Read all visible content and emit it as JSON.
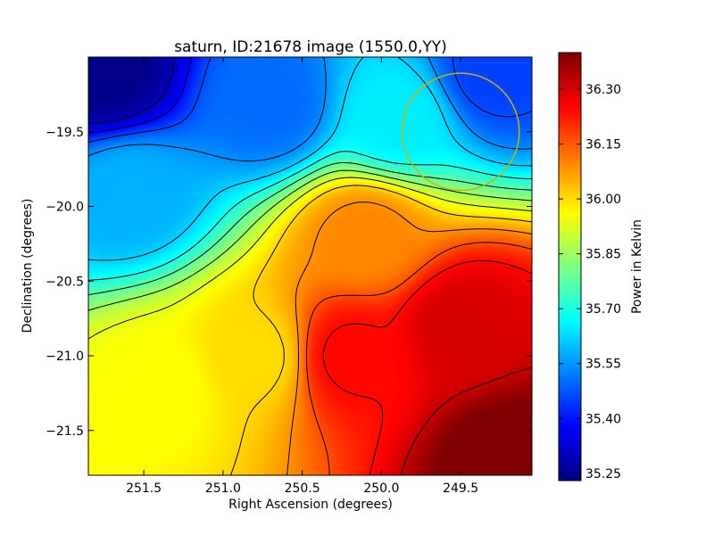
{
  "chart_data": {
    "type": "heatmap",
    "title": "saturn, ID:21678 image (1550.0,YY)",
    "xlabel": "Right Ascension (degrees)",
    "ylabel": "Declination (degrees)",
    "x_reversed": true,
    "xlim": [
      251.85,
      249.05
    ],
    "ylim": [
      -21.8,
      -19.0
    ],
    "x_ticks": [
      251.5,
      251.0,
      250.5,
      250.0,
      249.5
    ],
    "x_tick_labels": [
      "251.5",
      "251.0",
      "250.5",
      "250.0",
      "249.5"
    ],
    "y_ticks": [
      -19.5,
      -20.0,
      -20.5,
      -21.0,
      -21.5
    ],
    "y_tick_labels": [
      "−19.5",
      "−20.0",
      "−20.5",
      "−21.0",
      "−21.5"
    ],
    "colormap": "jet",
    "colorbar": {
      "label": "Power in Kelvin",
      "range": [
        35.23,
        36.4
      ],
      "ticks": [
        35.25,
        35.4,
        35.55,
        35.7,
        35.85,
        36.0,
        36.15,
        36.3
      ],
      "tick_labels": [
        "35.25",
        "35.40",
        "35.55",
        "35.70",
        "35.85",
        "36.00",
        "36.15",
        "36.30"
      ]
    },
    "field_samples": [
      {
        "ra": 251.75,
        "dec": -19.1,
        "value": 35.24
      },
      {
        "ra": 250.7,
        "dec": -19.3,
        "value": 35.5
      },
      {
        "ra": 249.9,
        "dec": -19.4,
        "value": 35.65
      },
      {
        "ra": 249.3,
        "dec": -19.1,
        "value": 35.45
      },
      {
        "ra": 251.6,
        "dec": -19.9,
        "value": 35.58
      },
      {
        "ra": 250.1,
        "dec": -20.2,
        "value": 36.1
      },
      {
        "ra": 251.4,
        "dec": -21.2,
        "value": 35.96
      },
      {
        "ra": 250.8,
        "dec": -21.0,
        "value": 36.0
      },
      {
        "ra": 250.2,
        "dec": -21.0,
        "value": 36.25
      },
      {
        "ra": 249.5,
        "dec": -20.8,
        "value": 36.3
      },
      {
        "ra": 249.2,
        "dec": -21.7,
        "value": 36.42
      }
    ],
    "contour_levels": 14,
    "annotations": [
      {
        "type": "circle",
        "ra": 249.5,
        "dec": -19.5,
        "radius_deg": 0.37,
        "color": "#c8b400"
      }
    ]
  }
}
